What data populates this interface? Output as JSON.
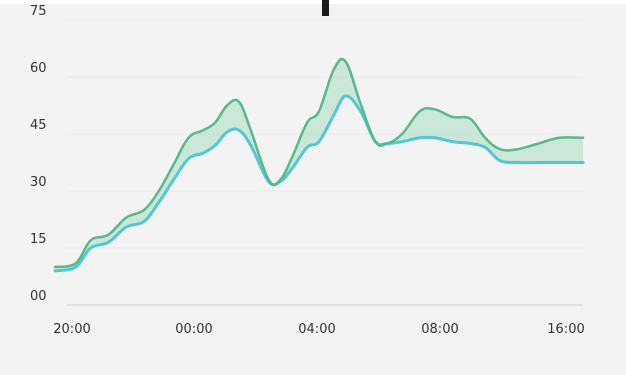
{
  "chart_data": {
    "type": "area",
    "subtype": "range-band",
    "title": "",
    "xlabel": "",
    "ylabel": "",
    "ylim": [
      0,
      75
    ],
    "y_ticks": [
      "00",
      "15",
      "30",
      "45",
      "60",
      "75"
    ],
    "x_tick_labels": [
      "20:00",
      "00:00",
      "04:00",
      "08:00",
      "16:00"
    ],
    "grid": true,
    "legend": "none",
    "x_index": [
      0,
      0.7,
      1.2,
      1.8,
      2.4,
      3.0,
      3.5,
      4.0,
      4.5,
      5.0,
      5.4,
      5.8,
      6.2,
      6.6,
      7.2,
      7.6,
      8.0,
      8.5,
      8.9,
      9.4,
      9.8,
      10.3,
      10.8,
      11.2,
      11.7,
      12.3,
      12.8,
      13.4,
      14.0,
      14.5,
      15.0,
      15.6,
      16.3,
      17.0,
      17.8
    ],
    "series": [
      {
        "values": [
          10,
          11,
          17,
          18.5,
          23,
          25,
          30,
          37,
          44,
          46,
          48,
          52.5,
          53.5,
          46,
          33,
          33,
          39,
          48,
          51,
          62,
          64,
          53,
          43,
          42.5,
          45,
          51,
          51.5,
          49.5,
          49,
          44,
          41,
          41,
          42.5,
          44,
          44
        ]
      },
      {
        "values": [
          9,
          10,
          15,
          16.5,
          20.5,
          22,
          27,
          33,
          38.5,
          40,
          42,
          45.5,
          46,
          42,
          32.5,
          32.5,
          36,
          41.5,
          43,
          50,
          55,
          51,
          43,
          42.5,
          43,
          44,
          44,
          43,
          42.5,
          41.5,
          38,
          37.5,
          37.5,
          37.5,
          37.5
        ]
      }
    ]
  },
  "colors": {
    "upper_line": "#59b98a",
    "lower_line": "#53c7d3",
    "band_fill": "#a9dcc2",
    "axis": "#d9d9d9",
    "grid": "#e8e8e8",
    "background": "#f3f3f3",
    "label": "#333333"
  }
}
